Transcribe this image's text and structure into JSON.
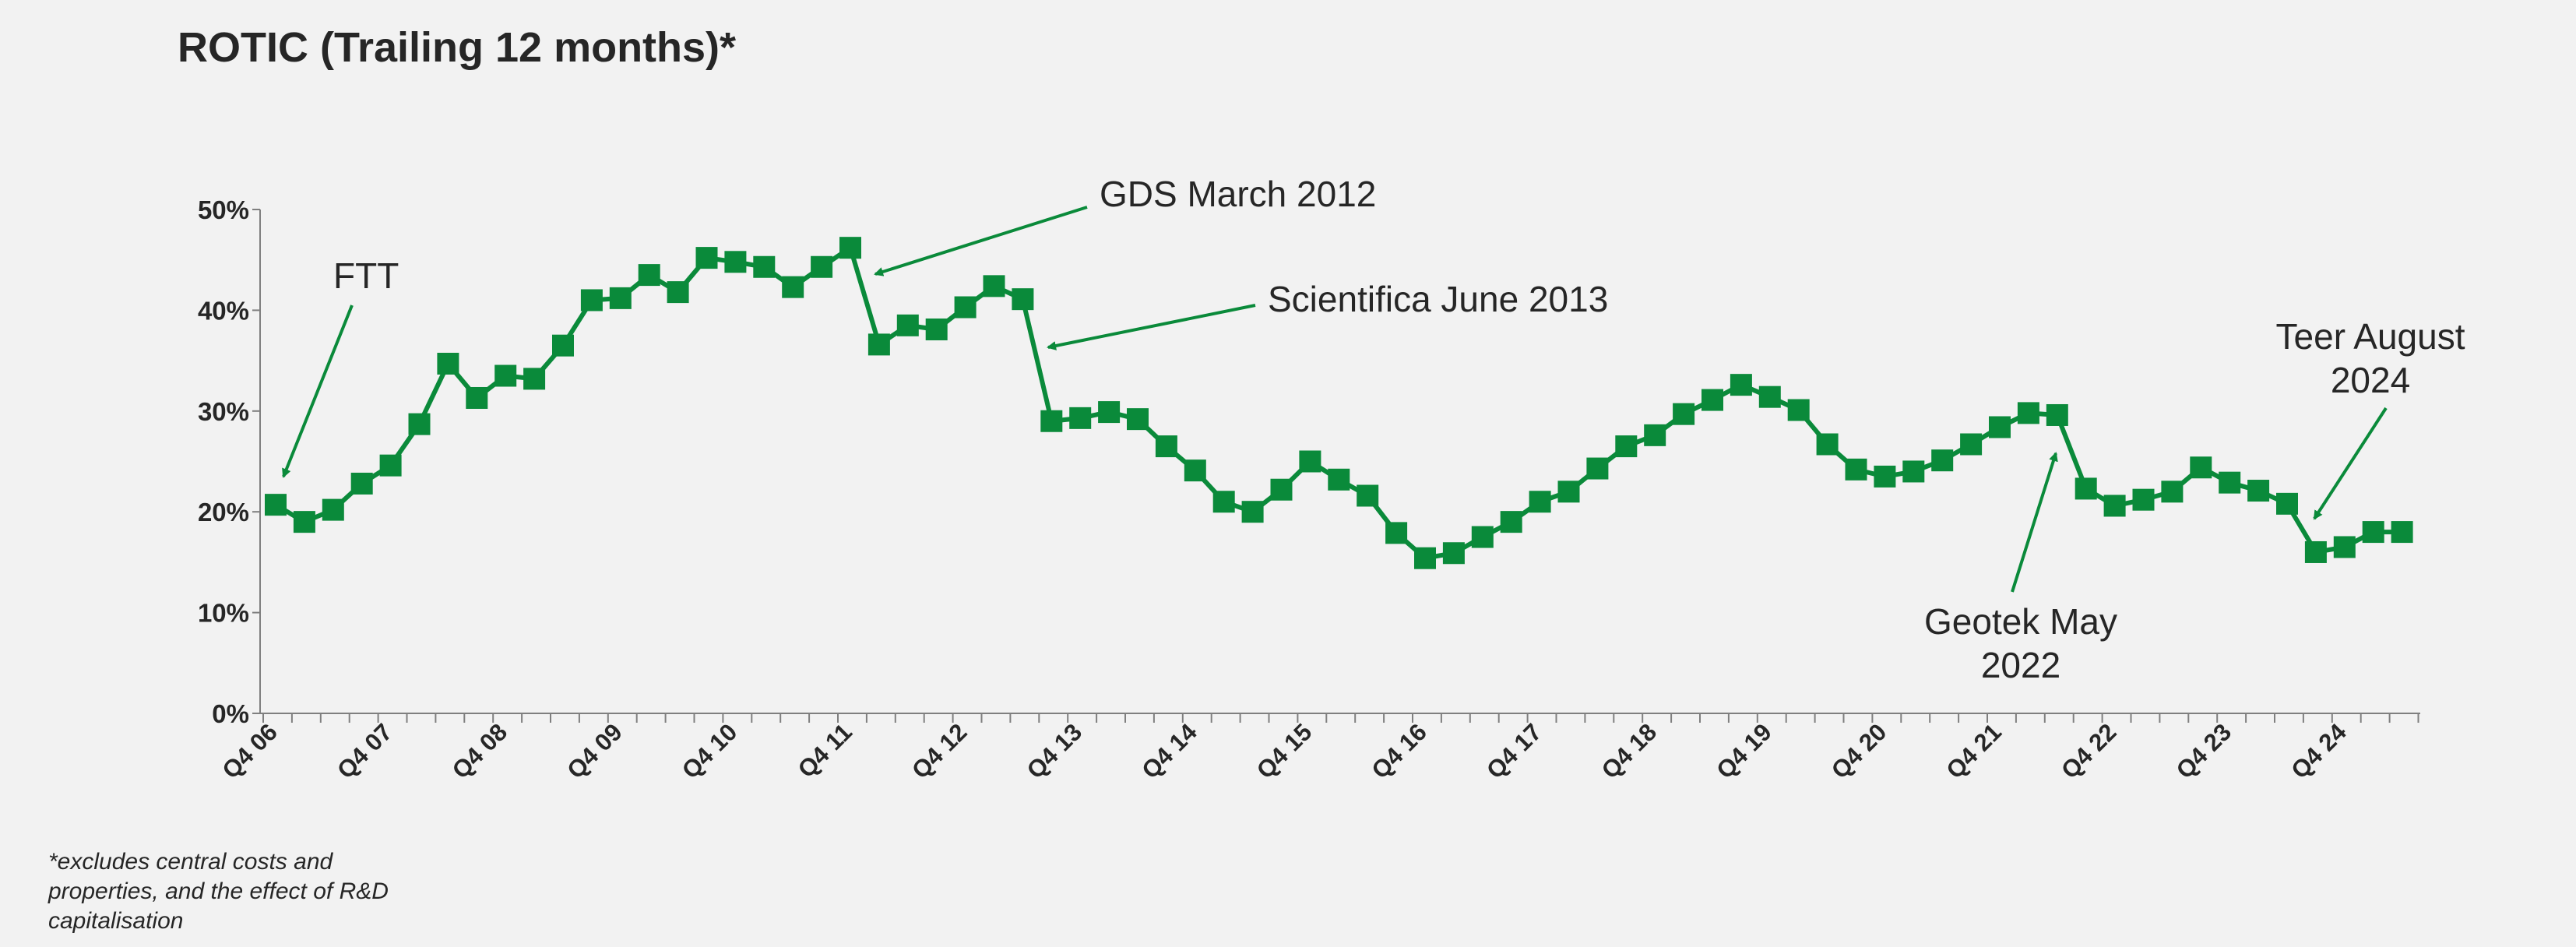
{
  "chart_data": {
    "type": "line",
    "title": "ROTIC (Trailing 12 months)*",
    "ylim": [
      0,
      50
    ],
    "yticks": [
      "0%",
      "10%",
      "20%",
      "30%",
      "40%",
      "50%"
    ],
    "xtick_labels": [
      "Q4 06",
      "Q4 07",
      "Q4 08",
      "Q4 09",
      "Q4 10",
      "Q4 11",
      "Q4 12",
      "Q4 13",
      "Q4 14",
      "Q4 15",
      "Q4 16",
      "Q4 17",
      "Q4 18",
      "Q4 19",
      "Q4 20",
      "Q4 21",
      "Q4 22",
      "Q4 23",
      "Q4 24"
    ],
    "series": [
      {
        "color": "#0a8a3a",
        "marker": "square",
        "values": [
          20.7,
          19.0,
          20.2,
          22.8,
          24.6,
          28.7,
          34.7,
          31.3,
          33.5,
          33.2,
          36.5,
          41.0,
          41.2,
          43.5,
          41.8,
          45.2,
          44.8,
          44.3,
          42.3,
          44.3,
          46.2,
          36.6,
          38.5,
          38.1,
          40.3,
          42.4,
          41.1,
          29.0,
          29.3,
          29.9,
          29.2,
          26.5,
          24.1,
          21.0,
          20.0,
          22.2,
          25.0,
          23.2,
          21.6,
          17.9,
          15.4,
          15.9,
          17.5,
          19.0,
          21.0,
          22.0,
          24.3,
          26.5,
          27.6,
          29.7,
          31.1,
          32.6,
          31.4,
          30.1,
          26.7,
          24.2,
          23.5,
          24.0,
          25.1,
          26.7,
          28.4,
          29.8,
          29.6,
          22.3,
          20.6,
          21.2,
          22.0,
          24.4,
          22.9,
          22.1,
          20.8,
          16.0,
          16.5,
          18.0,
          18.0
        ]
      }
    ],
    "annotations": {
      "ftt": "FTT",
      "gds": "GDS March 2012",
      "scientifica": "Scientifica June 2013",
      "geotek_l1": "Geotek May",
      "geotek_l2": "2022",
      "teer_l1": "Teer August",
      "teer_l2": "2024"
    },
    "grid": false,
    "legend": "none"
  },
  "footnote": "*excludes central costs and properties, and the effect of R&D capitalisation"
}
